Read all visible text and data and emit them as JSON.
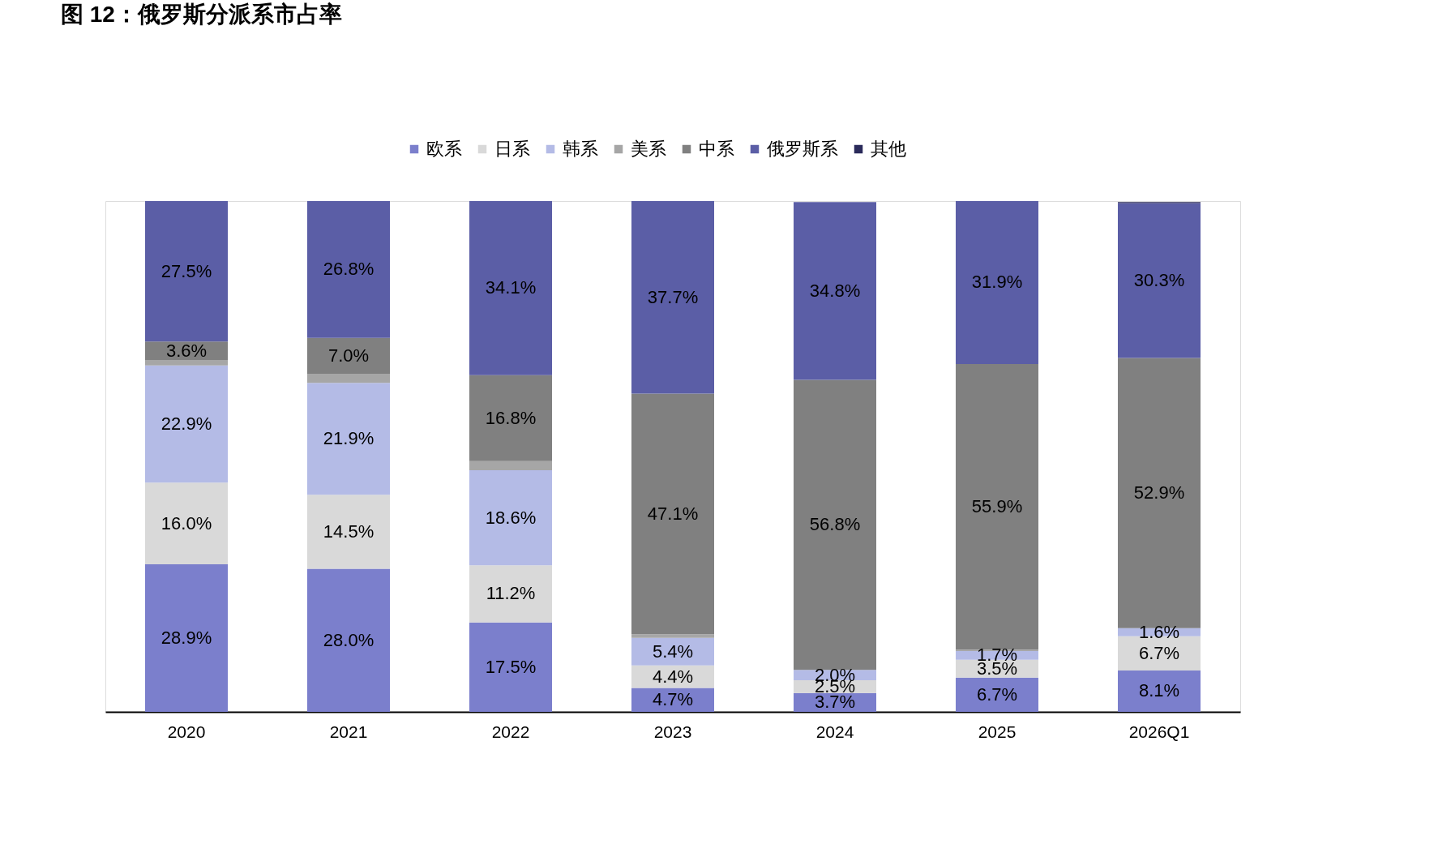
{
  "chart_data": {
    "type": "bar",
    "stacked": true,
    "title": "图 12：俄罗斯分派系市占率",
    "categories": [
      "2020",
      "2021",
      "2022",
      "2023",
      "2024",
      "2025",
      "2026Q1"
    ],
    "series": [
      {
        "name": "欧系",
        "color": "#7b7fcc",
        "values": [
          28.9,
          28.0,
          17.5,
          4.7,
          3.7,
          6.7,
          8.1
        ],
        "value_labels": [
          "28.9%",
          "28.0%",
          "17.5%",
          "4.7%",
          "3.7%",
          "6.7%",
          "8.1%"
        ]
      },
      {
        "name": "日系",
        "color": "#d9d9d9",
        "values": [
          16.0,
          14.5,
          11.2,
          4.4,
          2.5,
          3.5,
          6.7
        ],
        "value_labels": [
          "16.0%",
          "14.5%",
          "11.2%",
          "4.4%",
          "2.5%",
          "3.5%",
          "6.7%"
        ]
      },
      {
        "name": "韩系",
        "color": "#b4bbe6",
        "values": [
          22.9,
          21.9,
          18.6,
          5.4,
          2.0,
          1.7,
          1.6
        ],
        "value_labels": [
          "22.9%",
          "21.9%",
          "18.6%",
          "5.4%",
          "2.0%",
          "1.7%",
          "1.6%"
        ]
      },
      {
        "name": "美系",
        "color": "#a6a6a6",
        "values": [
          1.1,
          1.8,
          1.8,
          0.7,
          null,
          0.3,
          null
        ]
      },
      {
        "name": "中系",
        "color": "#808080",
        "values": [
          3.6,
          7.0,
          16.8,
          47.1,
          56.8,
          55.9,
          52.9
        ],
        "value_labels": [
          "3.6%",
          "7.0%",
          "16.8%",
          "47.1%",
          "56.8%",
          "55.9%",
          "52.9%"
        ]
      },
      {
        "name": "俄罗斯系",
        "color": "#5b5ea6",
        "values": [
          27.5,
          26.8,
          34.1,
          37.7,
          34.8,
          31.9,
          30.3
        ],
        "value_labels": [
          "27.5%",
          "26.8%",
          "34.1%",
          "37.7%",
          "34.8%",
          "31.9%",
          "30.3%"
        ]
      },
      {
        "name": "其他",
        "color": "#2a2a5a",
        "values": [
          null,
          null,
          null,
          null,
          null,
          null,
          0.2
        ]
      }
    ],
    "legend": "top",
    "grid": false
  }
}
